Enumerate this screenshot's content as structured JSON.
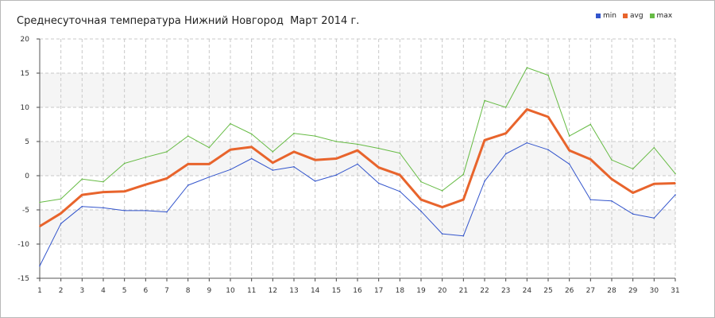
{
  "chart_data": {
    "type": "line",
    "title": "Среднесуточная температура Нижний Новгород  Март 2014 г.",
    "xlabel": "",
    "ylabel": "",
    "categories": [
      "1",
      "2",
      "3",
      "4",
      "5",
      "6",
      "7",
      "8",
      "9",
      "10",
      "11",
      "12",
      "13",
      "14",
      "15",
      "16",
      "17",
      "18",
      "19",
      "20",
      "21",
      "22",
      "23",
      "24",
      "25",
      "26",
      "27",
      "28",
      "29",
      "30",
      "31"
    ],
    "ylim": [
      -15,
      20
    ],
    "yticks": [
      "20",
      "15",
      "10",
      "5",
      "0",
      "-5",
      "-10",
      "-15"
    ],
    "grid": true,
    "legend_position": "top-right",
    "series": [
      {
        "name": "min",
        "color": "#3355cc",
        "values": [
          -13.2,
          -7.0,
          -4.5,
          -4.7,
          -5.1,
          -5.1,
          -5.3,
          -1.4,
          -0.2,
          0.9,
          2.5,
          0.8,
          1.3,
          -0.8,
          0.1,
          1.7,
          -1.1,
          -2.3,
          -5.2,
          -8.5,
          -8.8,
          -0.8,
          3.2,
          4.8,
          3.8,
          1.7,
          -3.5,
          -3.7,
          -5.6,
          -6.2,
          -2.8
        ]
      },
      {
        "name": "avg",
        "color": "#e8642c",
        "values": [
          -7.4,
          -5.5,
          -2.8,
          -2.4,
          -2.3,
          -1.3,
          -0.4,
          1.7,
          1.7,
          3.8,
          4.2,
          1.9,
          3.5,
          2.3,
          2.5,
          3.7,
          1.2,
          0.1,
          -3.5,
          -4.6,
          -3.5,
          5.2,
          6.2,
          9.7,
          8.6,
          3.7,
          2.4,
          -0.5,
          -2.5,
          -1.2,
          -1.1
        ]
      },
      {
        "name": "max",
        "color": "#66bb44",
        "values": [
          -3.9,
          -3.4,
          -0.5,
          -0.9,
          1.8,
          2.7,
          3.5,
          5.8,
          4.1,
          7.6,
          6.1,
          3.5,
          6.2,
          5.8,
          5.0,
          4.6,
          4.0,
          3.3,
          -0.9,
          -2.2,
          0.2,
          11.0,
          10.0,
          15.8,
          14.7,
          5.8,
          7.5,
          2.3,
          1.0,
          4.1,
          0.3
        ]
      }
    ]
  }
}
